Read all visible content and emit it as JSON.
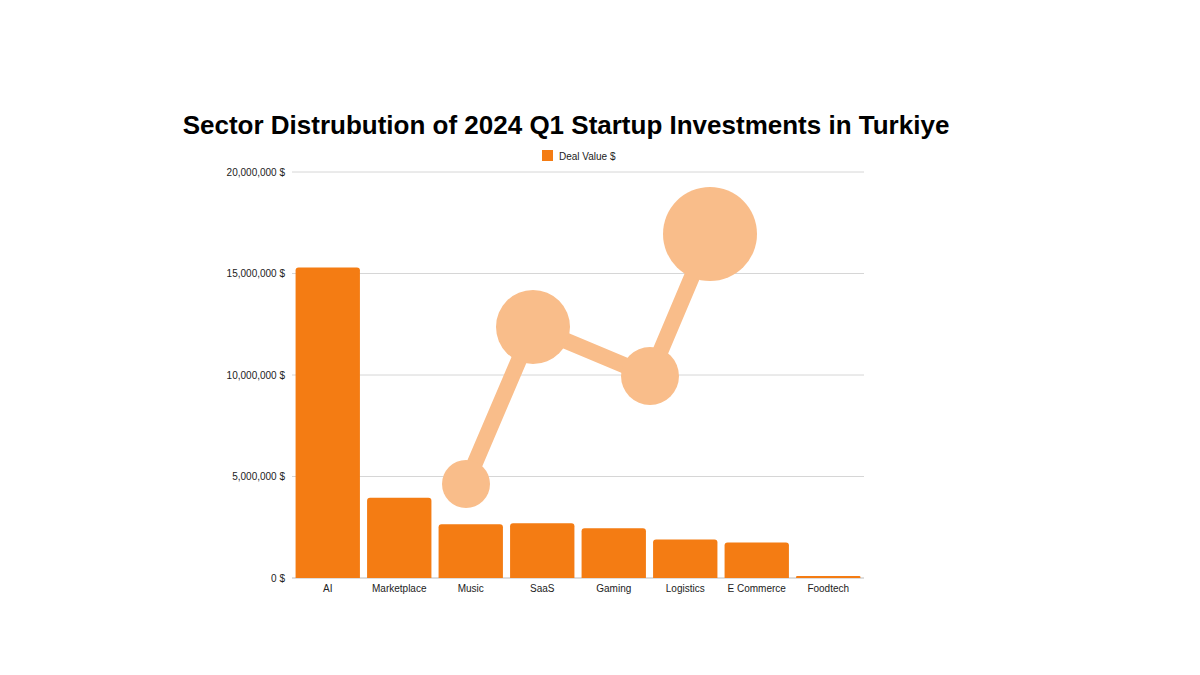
{
  "chart_data": {
    "type": "bar",
    "title": "Sector Distrubution of 2024 Q1 Startup Investments in Turkiye",
    "categories": [
      "AI",
      "Marketplace",
      "Music",
      "SaaS",
      "Gaming",
      "Logistics",
      "E Commerce",
      "Foodtech"
    ],
    "series": [
      {
        "name": "Deal Value $",
        "color": "#f47c13",
        "values": [
          15300000,
          3950000,
          2650000,
          2700000,
          2450000,
          1900000,
          1750000,
          100000
        ]
      }
    ],
    "ylim": [
      0,
      20000000
    ],
    "yticks": [
      {
        "value": 0,
        "label": "0 $"
      },
      {
        "value": 5000000,
        "label": "5,000,000 $"
      },
      {
        "value": 10000000,
        "label": "10,000,000 $"
      },
      {
        "value": 15000000,
        "label": "15,000,000 $"
      },
      {
        "value": 20000000,
        "label": "20,000,000 $"
      }
    ],
    "grid": true,
    "legend": "top"
  }
}
